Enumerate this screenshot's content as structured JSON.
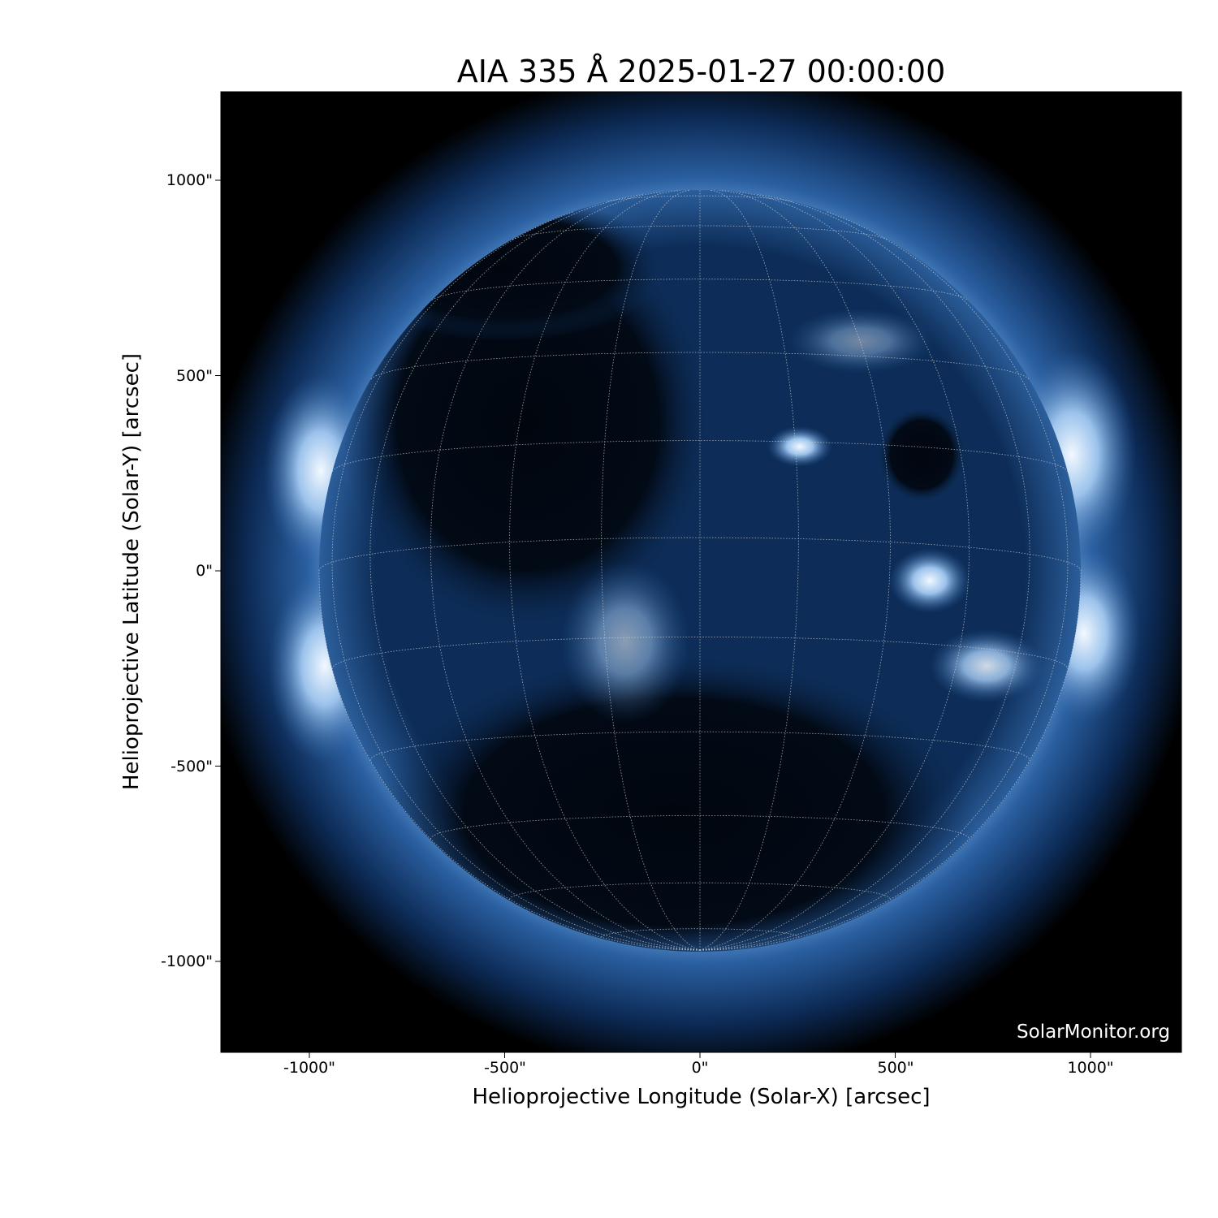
{
  "title": "AIA 335 Å 2025-01-27 00:00:00",
  "x_axis": {
    "label": "Helioprojective Longitude (Solar-X) [arcsec]",
    "ticks": [
      "-1000\"",
      "-500\"",
      "0\"",
      "500\"",
      "1000\""
    ],
    "tick_values": [
      -1000,
      -500,
      0,
      500,
      1000
    ],
    "range": [
      -1230,
      1230
    ]
  },
  "y_axis": {
    "label": "Helioprojective Latitude (Solar-Y) [arcsec]",
    "ticks": [
      "1000\"",
      "500\"",
      "0\"",
      "-500\"",
      "-1000\""
    ],
    "tick_values": [
      1000,
      500,
      0,
      -500,
      -1000
    ],
    "range": [
      -1230,
      1230
    ]
  },
  "watermark": "SolarMonitor.org",
  "solar_radius_arcsec": 975,
  "grid_spacing_deg": 15,
  "colors": {
    "background": "#000000",
    "disk": "#0b2a52",
    "bright": "#e8f2ff",
    "corona": "#2f6fb5"
  }
}
